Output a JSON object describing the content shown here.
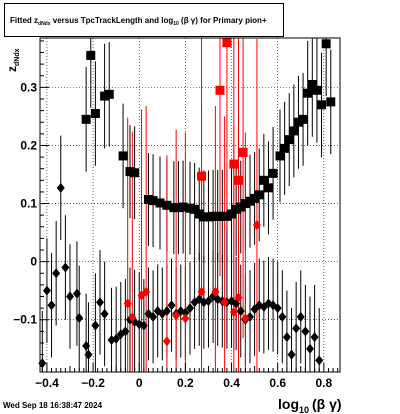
{
  "header": {
    "title_fitted": "Fitted",
    "title_z": "z",
    "title_z_sub": "dNdx",
    "title_mid": "versus TpcTrackLength and log",
    "title_log_sub": "10",
    "title_beta_gamma": "(β γ)",
    "title_end": "for Primary pion+"
  },
  "footer": {
    "datestamp": "Wed Sep 18 16:38:47 2024"
  },
  "colors": {
    "series_black": "#000000",
    "series_red": "#ff0000",
    "grid": "#000000"
  },
  "chart_data": {
    "type": "scatter",
    "title": "Fitted z_dNdx versus TpcTrackLength and log10(β γ) for Primary pion+",
    "xlabel": "log10(β γ)",
    "ylabel": "z_dNdx",
    "xlim": [
      -0.43,
      0.87
    ],
    "ylim": [
      -0.19,
      0.385
    ],
    "grid": true,
    "x_ticks": [
      -0.4,
      -0.2,
      0,
      0.2,
      0.4,
      0.6,
      0.8
    ],
    "x_tick_labels": [
      "−0.4",
      "−0.2",
      "0",
      "0.2",
      "0.4",
      "0.6",
      "0.8"
    ],
    "y_ticks": [
      -0.1,
      0,
      0.1,
      0.2,
      0.3
    ],
    "y_tick_labels": [
      "−0.1",
      "0",
      "0.1",
      "0.2",
      "0.3"
    ],
    "xlabel_main": "log",
    "xlabel_sub": "10",
    "xlabel_paren": "(β γ)",
    "ylabel_main": "z",
    "ylabel_sub": "dNdx",
    "series": [
      {
        "color": "black",
        "marker": "square",
        "points": [
          {
            "x": -0.23,
            "y": 0.245,
            "yerr": 0.09
          },
          {
            "x": -0.21,
            "y": 0.355,
            "yerr": 0.09
          },
          {
            "x": -0.19,
            "y": 0.255,
            "yerr": 0.09
          },
          {
            "x": -0.15,
            "y": 0.285,
            "yerr": 0.09
          },
          {
            "x": -0.13,
            "y": 0.288,
            "yerr": 0.09
          },
          {
            "x": -0.07,
            "y": 0.182,
            "yerr": 0.09
          },
          {
            "x": -0.04,
            "y": 0.155,
            "yerr": 0.08
          },
          {
            "x": -0.02,
            "y": 0.153,
            "yerr": 0.08
          },
          {
            "x": 0.04,
            "y": 0.107,
            "yerr": 0.08
          },
          {
            "x": 0.06,
            "y": 0.105,
            "yerr": 0.08
          },
          {
            "x": 0.09,
            "y": 0.101,
            "yerr": 0.08
          },
          {
            "x": 0.12,
            "y": 0.097,
            "yerr": 0.08
          },
          {
            "x": 0.15,
            "y": 0.093,
            "yerr": 0.08
          },
          {
            "x": 0.17,
            "y": 0.093,
            "yerr": 0.08
          },
          {
            "x": 0.19,
            "y": 0.094,
            "yerr": 0.08
          },
          {
            "x": 0.22,
            "y": 0.092,
            "yerr": 0.08
          },
          {
            "x": 0.24,
            "y": 0.09,
            "yerr": 0.08
          },
          {
            "x": 0.26,
            "y": 0.082,
            "yerr": 0.08
          },
          {
            "x": 0.28,
            "y": 0.077,
            "yerr": 0.08
          },
          {
            "x": 0.3,
            "y": 0.077,
            "yerr": 0.08
          },
          {
            "x": 0.32,
            "y": 0.078,
            "yerr": 0.08
          },
          {
            "x": 0.34,
            "y": 0.078,
            "yerr": 0.08
          },
          {
            "x": 0.36,
            "y": 0.078,
            "yerr": 0.08
          },
          {
            "x": 0.38,
            "y": 0.078,
            "yerr": 0.08
          },
          {
            "x": 0.4,
            "y": 0.082,
            "yerr": 0.08
          },
          {
            "x": 0.42,
            "y": 0.09,
            "yerr": 0.08
          },
          {
            "x": 0.44,
            "y": 0.094,
            "yerr": 0.08
          },
          {
            "x": 0.46,
            "y": 0.1,
            "yerr": 0.08
          },
          {
            "x": 0.48,
            "y": 0.104,
            "yerr": 0.08
          },
          {
            "x": 0.5,
            "y": 0.109,
            "yerr": 0.08
          },
          {
            "x": 0.52,
            "y": 0.115,
            "yerr": 0.08
          },
          {
            "x": 0.54,
            "y": 0.14,
            "yerr": 0.08
          },
          {
            "x": 0.56,
            "y": 0.127,
            "yerr": 0.08
          },
          {
            "x": 0.58,
            "y": 0.152,
            "yerr": 0.08
          },
          {
            "x": 0.61,
            "y": 0.182,
            "yerr": 0.08
          },
          {
            "x": 0.63,
            "y": 0.195,
            "yerr": 0.08
          },
          {
            "x": 0.65,
            "y": 0.21,
            "yerr": 0.08
          },
          {
            "x": 0.67,
            "y": 0.225,
            "yerr": 0.08
          },
          {
            "x": 0.69,
            "y": 0.24,
            "yerr": 0.08
          },
          {
            "x": 0.71,
            "y": 0.245,
            "yerr": 0.08
          },
          {
            "x": 0.73,
            "y": 0.29,
            "yerr": 0.09
          },
          {
            "x": 0.75,
            "y": 0.305,
            "yerr": 0.09
          },
          {
            "x": 0.77,
            "y": 0.295,
            "yerr": 0.09
          },
          {
            "x": 0.79,
            "y": 0.27,
            "yerr": 0.09
          },
          {
            "x": 0.81,
            "y": 0.375,
            "yerr": 0.09
          },
          {
            "x": 0.83,
            "y": 0.275,
            "yerr": 0.09
          }
        ]
      },
      {
        "color": "black",
        "marker": "diamond",
        "points": [
          {
            "x": -0.42,
            "y": -0.175,
            "yerr": 0.09
          },
          {
            "x": -0.4,
            "y": -0.05,
            "yerr": 0.09
          },
          {
            "x": -0.38,
            "y": -0.075,
            "yerr": 0.09
          },
          {
            "x": -0.36,
            "y": -0.02,
            "yerr": 0.09
          },
          {
            "x": -0.34,
            "y": 0.127,
            "yerr": 0.09
          },
          {
            "x": -0.32,
            "y": -0.01,
            "yerr": 0.09
          },
          {
            "x": -0.3,
            "y": -0.06,
            "yerr": 0.09
          },
          {
            "x": -0.27,
            "y": -0.055,
            "yerr": 0.09
          },
          {
            "x": -0.26,
            "y": -0.097,
            "yerr": 0.09
          },
          {
            "x": -0.23,
            "y": -0.145,
            "yerr": 0.09
          },
          {
            "x": -0.22,
            "y": -0.16,
            "yerr": 0.09
          },
          {
            "x": -0.19,
            "y": -0.11,
            "yerr": 0.09
          },
          {
            "x": -0.17,
            "y": -0.07,
            "yerr": 0.09
          },
          {
            "x": -0.15,
            "y": -0.09,
            "yerr": 0.09
          },
          {
            "x": -0.12,
            "y": -0.135,
            "yerr": 0.09
          },
          {
            "x": -0.1,
            "y": -0.133,
            "yerr": 0.09
          },
          {
            "x": -0.08,
            "y": -0.125,
            "yerr": 0.09
          },
          {
            "x": -0.06,
            "y": -0.12,
            "yerr": 0.09
          },
          {
            "x": -0.04,
            "y": -0.1,
            "yerr": 0.09
          },
          {
            "x": -0.02,
            "y": -0.104,
            "yerr": 0.09
          },
          {
            "x": 0.0,
            "y": -0.108,
            "yerr": 0.09
          },
          {
            "x": 0.02,
            "y": -0.11,
            "yerr": 0.08
          },
          {
            "x": 0.04,
            "y": -0.09,
            "yerr": 0.08
          },
          {
            "x": 0.06,
            "y": -0.095,
            "yerr": 0.08
          },
          {
            "x": 0.08,
            "y": -0.085,
            "yerr": 0.08
          },
          {
            "x": 0.1,
            "y": -0.09,
            "yerr": 0.08
          },
          {
            "x": 0.12,
            "y": -0.085,
            "yerr": 0.08
          },
          {
            "x": 0.14,
            "y": -0.075,
            "yerr": 0.08
          },
          {
            "x": 0.16,
            "y": -0.09,
            "yerr": 0.08
          },
          {
            "x": 0.18,
            "y": -0.085,
            "yerr": 0.08
          },
          {
            "x": 0.2,
            "y": -0.088,
            "yerr": 0.08
          },
          {
            "x": 0.22,
            "y": -0.08,
            "yerr": 0.08
          },
          {
            "x": 0.24,
            "y": -0.07,
            "yerr": 0.08
          },
          {
            "x": 0.26,
            "y": -0.065,
            "yerr": 0.08
          },
          {
            "x": 0.28,
            "y": -0.07,
            "yerr": 0.08
          },
          {
            "x": 0.3,
            "y": -0.068,
            "yerr": 0.08
          },
          {
            "x": 0.32,
            "y": -0.06,
            "yerr": 0.08
          },
          {
            "x": 0.34,
            "y": -0.065,
            "yerr": 0.08
          },
          {
            "x": 0.36,
            "y": -0.068,
            "yerr": 0.08
          },
          {
            "x": 0.38,
            "y": -0.07,
            "yerr": 0.08
          },
          {
            "x": 0.4,
            "y": -0.068,
            "yerr": 0.08
          },
          {
            "x": 0.42,
            "y": -0.072,
            "yerr": 0.08
          },
          {
            "x": 0.44,
            "y": -0.085,
            "yerr": 0.08
          },
          {
            "x": 0.46,
            "y": -0.1,
            "yerr": 0.08
          },
          {
            "x": 0.48,
            "y": -0.095,
            "yerr": 0.08
          },
          {
            "x": 0.5,
            "y": -0.082,
            "yerr": 0.08
          },
          {
            "x": 0.52,
            "y": -0.075,
            "yerr": 0.08
          },
          {
            "x": 0.54,
            "y": -0.078,
            "yerr": 0.08
          },
          {
            "x": 0.56,
            "y": -0.072,
            "yerr": 0.08
          },
          {
            "x": 0.58,
            "y": -0.075,
            "yerr": 0.08
          },
          {
            "x": 0.6,
            "y": -0.08,
            "yerr": 0.08
          },
          {
            "x": 0.62,
            "y": -0.095,
            "yerr": 0.08
          },
          {
            "x": 0.64,
            "y": -0.13,
            "yerr": 0.08
          },
          {
            "x": 0.66,
            "y": -0.16,
            "yerr": 0.08
          },
          {
            "x": 0.68,
            "y": -0.115,
            "yerr": 0.08
          },
          {
            "x": 0.7,
            "y": -0.095,
            "yerr": 0.08
          },
          {
            "x": 0.72,
            "y": -0.12,
            "yerr": 0.08
          },
          {
            "x": 0.74,
            "y": -0.15,
            "yerr": 0.09
          },
          {
            "x": 0.76,
            "y": -0.13,
            "yerr": 0.09
          },
          {
            "x": 0.78,
            "y": -0.17,
            "yerr": 0.09
          }
        ]
      },
      {
        "color": "red",
        "marker": "square",
        "points": [
          {
            "x": 0.27,
            "y": 0.147,
            "yerr": 0.32
          },
          {
            "x": 0.35,
            "y": 0.295,
            "yerr": 0.32
          },
          {
            "x": 0.38,
            "y": 0.377,
            "yerr": 0.32
          },
          {
            "x": 0.41,
            "y": 0.168,
            "yerr": 0.32
          },
          {
            "x": 0.43,
            "y": 0.14,
            "yerr": 0.32
          },
          {
            "x": 0.45,
            "y": 0.188,
            "yerr": 0.32
          }
        ]
      },
      {
        "color": "red",
        "marker": "diamond",
        "points": [
          {
            "x": -0.05,
            "y": -0.072,
            "yerr": 0.32
          },
          {
            "x": -0.03,
            "y": -0.096,
            "yerr": 0.32
          },
          {
            "x": 0.01,
            "y": -0.058,
            "yerr": 0.32
          },
          {
            "x": 0.03,
            "y": -0.052,
            "yerr": 0.32
          },
          {
            "x": 0.12,
            "y": -0.137,
            "yerr": 0.32
          },
          {
            "x": 0.16,
            "y": -0.093,
            "yerr": 0.32
          },
          {
            "x": 0.2,
            "y": -0.098,
            "yerr": 0.32
          },
          {
            "x": 0.27,
            "y": -0.052,
            "yerr": 0.32
          },
          {
            "x": 0.33,
            "y": -0.052,
            "yerr": 0.32
          },
          {
            "x": 0.37,
            "y": -0.07,
            "yerr": 0.32
          },
          {
            "x": 0.41,
            "y": -0.087,
            "yerr": 0.32
          },
          {
            "x": 0.43,
            "y": -0.062,
            "yerr": 0.32
          },
          {
            "x": 0.46,
            "y": -0.098,
            "yerr": 0.32
          },
          {
            "x": 0.51,
            "y": 0.063,
            "yerr": 0.32
          }
        ]
      }
    ]
  }
}
